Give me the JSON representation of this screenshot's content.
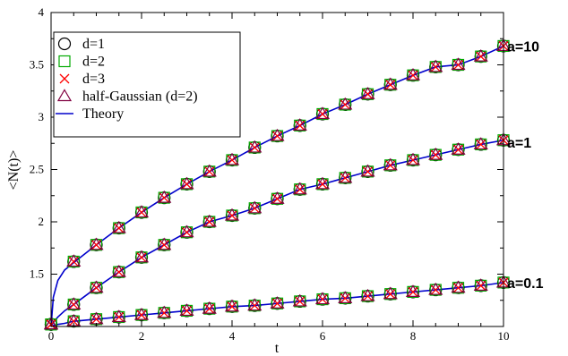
{
  "chart_data": {
    "type": "scatter",
    "xlabel": "t",
    "ylabel": "<N(t)>",
    "xlim": [
      0,
      10
    ],
    "ylim": [
      1,
      4
    ],
    "grid": false,
    "legend_position": "top-left",
    "x_ticks": [
      "0",
      "2",
      "4",
      "6",
      "8",
      "10"
    ],
    "y_ticks": [
      "1.5",
      "2",
      "2.5",
      "3",
      "3.5",
      "4"
    ],
    "x": [
      0,
      0.5,
      1,
      1.5,
      2,
      2.5,
      3,
      3.5,
      4,
      4.5,
      5,
      5.5,
      6,
      6.5,
      7,
      7.5,
      8,
      8.5,
      9,
      9.5,
      10
    ],
    "series": [
      {
        "name": "d=1",
        "marker": "circle",
        "color": "#000000",
        "groups": [
          {
            "a": "a=10",
            "values": [
              1.02,
              1.62,
              1.78,
              1.94,
              2.09,
              2.23,
              2.36,
              2.48,
              2.59,
              2.71,
              2.82,
              2.92,
              3.03,
              3.12,
              3.22,
              3.31,
              3.4,
              3.48,
              3.5,
              3.58,
              3.68
            ]
          },
          {
            "a": "a=1",
            "values": [
              1.02,
              1.21,
              1.37,
              1.52,
              1.66,
              1.78,
              1.9,
              2.0,
              2.06,
              2.13,
              2.22,
              2.31,
              2.36,
              2.42,
              2.48,
              2.54,
              2.59,
              2.64,
              2.69,
              2.74,
              2.78
            ]
          },
          {
            "a": "a=0.1",
            "values": [
              1.02,
              1.05,
              1.07,
              1.09,
              1.11,
              1.13,
              1.15,
              1.17,
              1.19,
              1.2,
              1.22,
              1.24,
              1.26,
              1.27,
              1.29,
              1.31,
              1.33,
              1.35,
              1.37,
              1.39,
              1.42
            ]
          }
        ]
      },
      {
        "name": "d=2",
        "marker": "square",
        "color": "#00aa00",
        "groups": [
          {
            "a": "a=10",
            "values": [
              1.02,
              1.62,
              1.78,
              1.94,
              2.09,
              2.23,
              2.36,
              2.48,
              2.59,
              2.71,
              2.82,
              2.92,
              3.03,
              3.12,
              3.22,
              3.31,
              3.4,
              3.48,
              3.5,
              3.58,
              3.68
            ]
          },
          {
            "a": "a=1",
            "values": [
              1.02,
              1.21,
              1.37,
              1.52,
              1.66,
              1.78,
              1.9,
              2.0,
              2.06,
              2.13,
              2.22,
              2.31,
              2.36,
              2.42,
              2.48,
              2.54,
              2.59,
              2.64,
              2.69,
              2.74,
              2.78
            ]
          },
          {
            "a": "a=0.1",
            "values": [
              1.02,
              1.05,
              1.07,
              1.09,
              1.11,
              1.13,
              1.15,
              1.17,
              1.19,
              1.2,
              1.22,
              1.24,
              1.26,
              1.27,
              1.29,
              1.31,
              1.33,
              1.35,
              1.37,
              1.39,
              1.42
            ]
          }
        ]
      },
      {
        "name": "d=3",
        "marker": "x",
        "color": "#ff0000",
        "groups": [
          {
            "a": "a=10",
            "values": [
              1.02,
              1.62,
              1.78,
              1.94,
              2.09,
              2.23,
              2.36,
              2.48,
              2.59,
              2.71,
              2.82,
              2.92,
              3.03,
              3.12,
              3.22,
              3.31,
              3.4,
              3.48,
              3.5,
              3.58,
              3.68
            ]
          },
          {
            "a": "a=1",
            "values": [
              1.02,
              1.21,
              1.37,
              1.52,
              1.66,
              1.78,
              1.9,
              2.0,
              2.06,
              2.13,
              2.22,
              2.31,
              2.36,
              2.42,
              2.48,
              2.54,
              2.59,
              2.64,
              2.69,
              2.74,
              2.78
            ]
          },
          {
            "a": "a=0.1",
            "values": [
              1.02,
              1.05,
              1.07,
              1.09,
              1.11,
              1.13,
              1.15,
              1.17,
              1.19,
              1.2,
              1.22,
              1.24,
              1.26,
              1.27,
              1.29,
              1.31,
              1.33,
              1.35,
              1.37,
              1.39,
              1.42
            ]
          }
        ]
      },
      {
        "name": "half-Gaussian (d=2)",
        "marker": "triangle",
        "color": "#800040",
        "groups": [
          {
            "a": "a=10",
            "values": [
              1.02,
              1.62,
              1.78,
              1.94,
              2.09,
              2.23,
              2.36,
              2.48,
              2.59,
              2.71,
              2.82,
              2.92,
              3.03,
              3.12,
              3.22,
              3.31,
              3.4,
              3.48,
              3.5,
              3.58,
              3.68
            ]
          },
          {
            "a": "a=1",
            "values": [
              1.02,
              1.21,
              1.37,
              1.52,
              1.66,
              1.78,
              1.9,
              2.0,
              2.06,
              2.13,
              2.22,
              2.31,
              2.36,
              2.42,
              2.48,
              2.54,
              2.59,
              2.64,
              2.69,
              2.74,
              2.78
            ]
          },
          {
            "a": "a=0.1",
            "values": [
              1.02,
              1.05,
              1.07,
              1.09,
              1.11,
              1.13,
              1.15,
              1.17,
              1.19,
              1.2,
              1.22,
              1.24,
              1.26,
              1.27,
              1.29,
              1.31,
              1.33,
              1.35,
              1.37,
              1.39,
              1.42
            ]
          }
        ]
      }
    ],
    "theory": {
      "name": "Theory",
      "color": "#0000cc",
      "curves": [
        {
          "a": "a=10",
          "x": [
            0,
            0.05,
            0.15,
            0.3,
            0.5,
            1,
            1.5,
            2,
            2.5,
            3,
            3.5,
            4,
            4.5,
            5,
            5.5,
            6,
            6.5,
            7,
            7.5,
            8,
            8.5,
            9,
            9.5,
            10
          ],
          "y": [
            1.0,
            1.28,
            1.44,
            1.54,
            1.61,
            1.78,
            1.94,
            2.09,
            2.23,
            2.36,
            2.48,
            2.59,
            2.71,
            2.82,
            2.92,
            3.03,
            3.12,
            3.22,
            3.31,
            3.4,
            3.48,
            3.5,
            3.58,
            3.68
          ]
        },
        {
          "a": "a=1",
          "x": [
            0,
            0.05,
            0.15,
            0.3,
            0.5,
            1,
            1.5,
            2,
            2.5,
            3,
            3.5,
            4,
            4.5,
            5,
            5.5,
            6,
            6.5,
            7,
            7.5,
            8,
            8.5,
            9,
            9.5,
            10
          ],
          "y": [
            1.0,
            1.04,
            1.09,
            1.15,
            1.21,
            1.37,
            1.52,
            1.66,
            1.78,
            1.9,
            2.0,
            2.06,
            2.13,
            2.22,
            2.31,
            2.36,
            2.42,
            2.48,
            2.54,
            2.59,
            2.64,
            2.69,
            2.74,
            2.78
          ]
        },
        {
          "a": "a=0.1",
          "x": [
            0,
            0.05,
            0.15,
            0.3,
            0.5,
            1,
            1.5,
            2,
            2.5,
            3,
            3.5,
            4,
            4.5,
            5,
            5.5,
            6,
            6.5,
            7,
            7.5,
            8,
            8.5,
            9,
            9.5,
            10
          ],
          "y": [
            1.0,
            1.01,
            1.02,
            1.03,
            1.05,
            1.07,
            1.09,
            1.11,
            1.13,
            1.15,
            1.17,
            1.19,
            1.2,
            1.22,
            1.24,
            1.26,
            1.27,
            1.29,
            1.31,
            1.33,
            1.35,
            1.37,
            1.39,
            1.42
          ]
        }
      ]
    },
    "annotations": [
      {
        "text": "a=10",
        "y": 3.68
      },
      {
        "text": "a=1",
        "y": 2.76
      },
      {
        "text": "a=0.1",
        "y": 1.42
      }
    ]
  }
}
